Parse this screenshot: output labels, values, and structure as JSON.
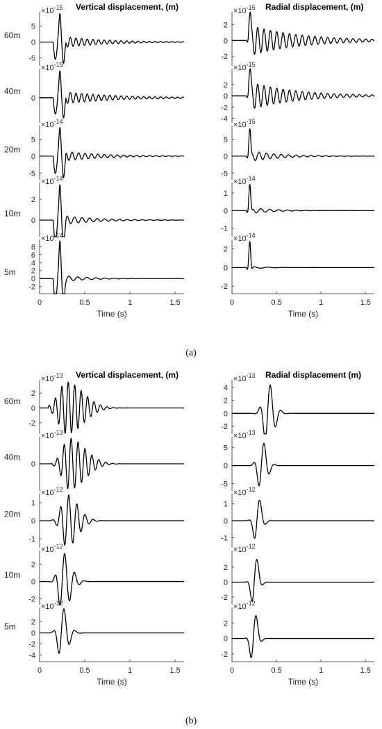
{
  "figure": {
    "subfigure_labels": [
      "(a)",
      "(b)"
    ]
  },
  "chart_data": [
    {
      "type": "line",
      "subfigure": "(a)",
      "title": "Vertical displacement, (m)",
      "xlabel": "Time (s)",
      "xlim": [
        0,
        1.6
      ],
      "xticks": [
        0,
        0.5,
        1,
        1.5
      ],
      "panels": [
        {
          "label": "60m",
          "exponent": "-15",
          "yticks": [
            -5,
            0,
            5
          ],
          "ylim": [
            -7.5,
            9.5
          ],
          "trace": {
            "t0": 0.2,
            "kind": "dip-then-ring",
            "amp": 9,
            "tail_cycles": 16,
            "decay": 0.55,
            "tail_amp": 0.22
          }
        },
        {
          "label": "40m",
          "exponent": "-15",
          "yticks": [
            0
          ],
          "ylim": [
            -2.6,
            3.0
          ],
          "trace": {
            "t0": 0.2,
            "kind": "dip-then-ring",
            "amp": 2.8,
            "tail_cycles": 16,
            "decay": 0.45,
            "tail_amp": 0.25
          }
        },
        {
          "label": "20m",
          "exponent": "-14",
          "yticks": [
            -5,
            0,
            5
          ],
          "ylim": [
            -7,
            9
          ],
          "trace": {
            "t0": 0.2,
            "kind": "dip-then-ring",
            "amp": 8.5,
            "tail_cycles": 14,
            "decay": 0.6,
            "tail_amp": 0.2
          }
        },
        {
          "label": "10m",
          "exponent": "-14",
          "yticks": [
            0,
            2
          ],
          "ylim": [
            -1.6,
            3.6
          ],
          "trace": {
            "t0": 0.2,
            "kind": "dip-then-ring",
            "amp": 3.4,
            "tail_cycles": 12,
            "decay": 0.7,
            "tail_amp": 0.15
          }
        },
        {
          "label": "5m",
          "exponent": "-14",
          "yticks": [
            -2,
            0,
            2,
            4,
            6,
            8
          ],
          "ylim": [
            -3.8,
            9.8
          ],
          "trace": {
            "t0": 0.2,
            "kind": "dip-then-ring",
            "amp": 9.5,
            "tail_cycles": 10,
            "decay": 0.9,
            "tail_amp": 0.1
          }
        }
      ]
    },
    {
      "type": "line",
      "subfigure": "(a)",
      "title": "Radial displacement, (m)",
      "xlabel": "Time (s)",
      "xlim": [
        0,
        1.6
      ],
      "xticks": [
        0,
        0.5,
        1,
        1.5
      ],
      "panels": [
        {
          "label": "",
          "exponent": "-15",
          "yticks": [
            -2,
            0,
            2
          ],
          "ylim": [
            -3.2,
            3.6
          ],
          "trace": {
            "t0": 0.2,
            "kind": "ring",
            "amp": 3.2,
            "tail_cycles": 14,
            "decay": 0.45,
            "tail_amp": 0.6
          }
        },
        {
          "label": "",
          "exponent": "-15",
          "yticks": [
            -4,
            -2,
            0,
            2
          ],
          "ylim": [
            -4.8,
            4.8
          ],
          "trace": {
            "t0": 0.2,
            "kind": "ring",
            "amp": 4.5,
            "tail_cycles": 14,
            "decay": 0.5,
            "tail_amp": 0.55
          }
        },
        {
          "label": "",
          "exponent": "-15",
          "yticks": [
            -5,
            0,
            5
          ],
          "ylim": [
            -7,
            9
          ],
          "trace": {
            "t0": 0.2,
            "kind": "ring",
            "amp": 8,
            "tail_cycles": 12,
            "decay": 0.8,
            "tail_amp": 0.2
          }
        },
        {
          "label": "",
          "exponent": "-14",
          "yticks": [
            -1,
            0,
            1
          ],
          "ylim": [
            -1.5,
            1.6
          ],
          "trace": {
            "t0": 0.2,
            "kind": "ring",
            "amp": 1.5,
            "tail_cycles": 10,
            "decay": 1.0,
            "tail_amp": 0.12
          }
        },
        {
          "label": "",
          "exponent": "-14",
          "yticks": [
            -2,
            0,
            2
          ],
          "ylim": [
            -2.8,
            3.0
          ],
          "trace": {
            "t0": 0.2,
            "kind": "ring",
            "amp": 2.8,
            "tail_cycles": 6,
            "decay": 1.5,
            "tail_amp": 0.05
          }
        }
      ]
    },
    {
      "type": "line",
      "subfigure": "(b)",
      "title": "Vertical displacement, (m)",
      "xlabel": "Time (s)",
      "xlim": [
        0,
        1.6
      ],
      "xticks": [
        0,
        0.5,
        1,
        1.5
      ],
      "panels": [
        {
          "label": "60m",
          "exponent": "-13",
          "yticks": [
            -2,
            0,
            2
          ],
          "ylim": [
            -3.5,
            3.8
          ],
          "trace": {
            "t0": 0.3,
            "kind": "packet",
            "amp": 3.5,
            "cycles": 14,
            "width": 0.18,
            "skew": 0.5
          }
        },
        {
          "label": "40m",
          "exponent": "-13",
          "yticks": [
            0
          ],
          "ylim": [
            -3.5,
            3.5
          ],
          "trace": {
            "t0": 0.33,
            "kind": "packet",
            "amp": 3.3,
            "cycles": 13,
            "width": 0.17,
            "skew": 0.45
          }
        },
        {
          "label": "20m",
          "exponent": "-12",
          "yticks": [
            -1,
            0,
            1
          ],
          "ylim": [
            -1.5,
            1.5
          ],
          "trace": {
            "t0": 0.3,
            "kind": "packet",
            "amp": 1.45,
            "cycles": 11,
            "width": 0.12,
            "skew": 0.5
          }
        },
        {
          "label": "10m",
          "exponent": "-12",
          "yticks": [
            -2,
            0,
            2
          ],
          "ylim": [
            -2.7,
            3.6
          ],
          "trace": {
            "t0": 0.25,
            "kind": "packet",
            "amp": 3.4,
            "cycles": 9,
            "width": 0.09,
            "skew": 0.5
          }
        },
        {
          "label": "5m",
          "exponent": "-12",
          "yticks": [
            -4,
            -2,
            0,
            2
          ],
          "ylim": [
            -5.2,
            4.6
          ],
          "trace": {
            "t0": 0.24,
            "kind": "packet",
            "amp": 4.8,
            "cycles": 8,
            "width": 0.07,
            "skew": 0.55
          }
        }
      ]
    },
    {
      "type": "line",
      "subfigure": "(b)",
      "title": "Radial displacement (m)",
      "xlabel": "Time (s)",
      "xlim": [
        0,
        1.6
      ],
      "xticks": [
        0,
        0.5,
        1,
        1.5
      ],
      "panels": [
        {
          "label": "",
          "exponent": "-13",
          "yticks": [
            -2,
            0,
            2,
            4
          ],
          "ylim": [
            -3.2,
            5.2
          ],
          "trace": {
            "t0": 0.4,
            "kind": "packet",
            "amp": 4.8,
            "cycles": 8,
            "width": 0.07,
            "skew": 0.7
          }
        },
        {
          "label": "",
          "exponent": "-13",
          "yticks": [
            -5,
            0,
            5
          ],
          "ylim": [
            -7,
            8
          ],
          "trace": {
            "t0": 0.33,
            "kind": "packet",
            "amp": 7,
            "cycles": 8,
            "width": 0.06,
            "skew": 0.7
          }
        },
        {
          "label": "",
          "exponent": "-12",
          "yticks": [
            -1,
            0,
            1
          ],
          "ylim": [
            -1.6,
            1.6
          ],
          "trace": {
            "t0": 0.28,
            "kind": "packet",
            "amp": 1.5,
            "cycles": 7,
            "width": 0.05,
            "skew": 0.7
          }
        },
        {
          "label": "",
          "exponent": "-12",
          "yticks": [
            -2,
            0,
            2
          ],
          "ylim": [
            -3,
            4.2
          ],
          "trace": {
            "t0": 0.25,
            "kind": "packet",
            "amp": 3.9,
            "cycles": 7,
            "width": 0.045,
            "skew": 0.7
          }
        },
        {
          "label": "",
          "exponent": "-12",
          "yticks": [
            -2,
            0,
            2
          ],
          "ylim": [
            -3,
            4.0
          ],
          "trace": {
            "t0": 0.24,
            "kind": "packet",
            "amp": 3.8,
            "cycles": 7,
            "width": 0.045,
            "skew": 0.7
          }
        }
      ]
    }
  ]
}
